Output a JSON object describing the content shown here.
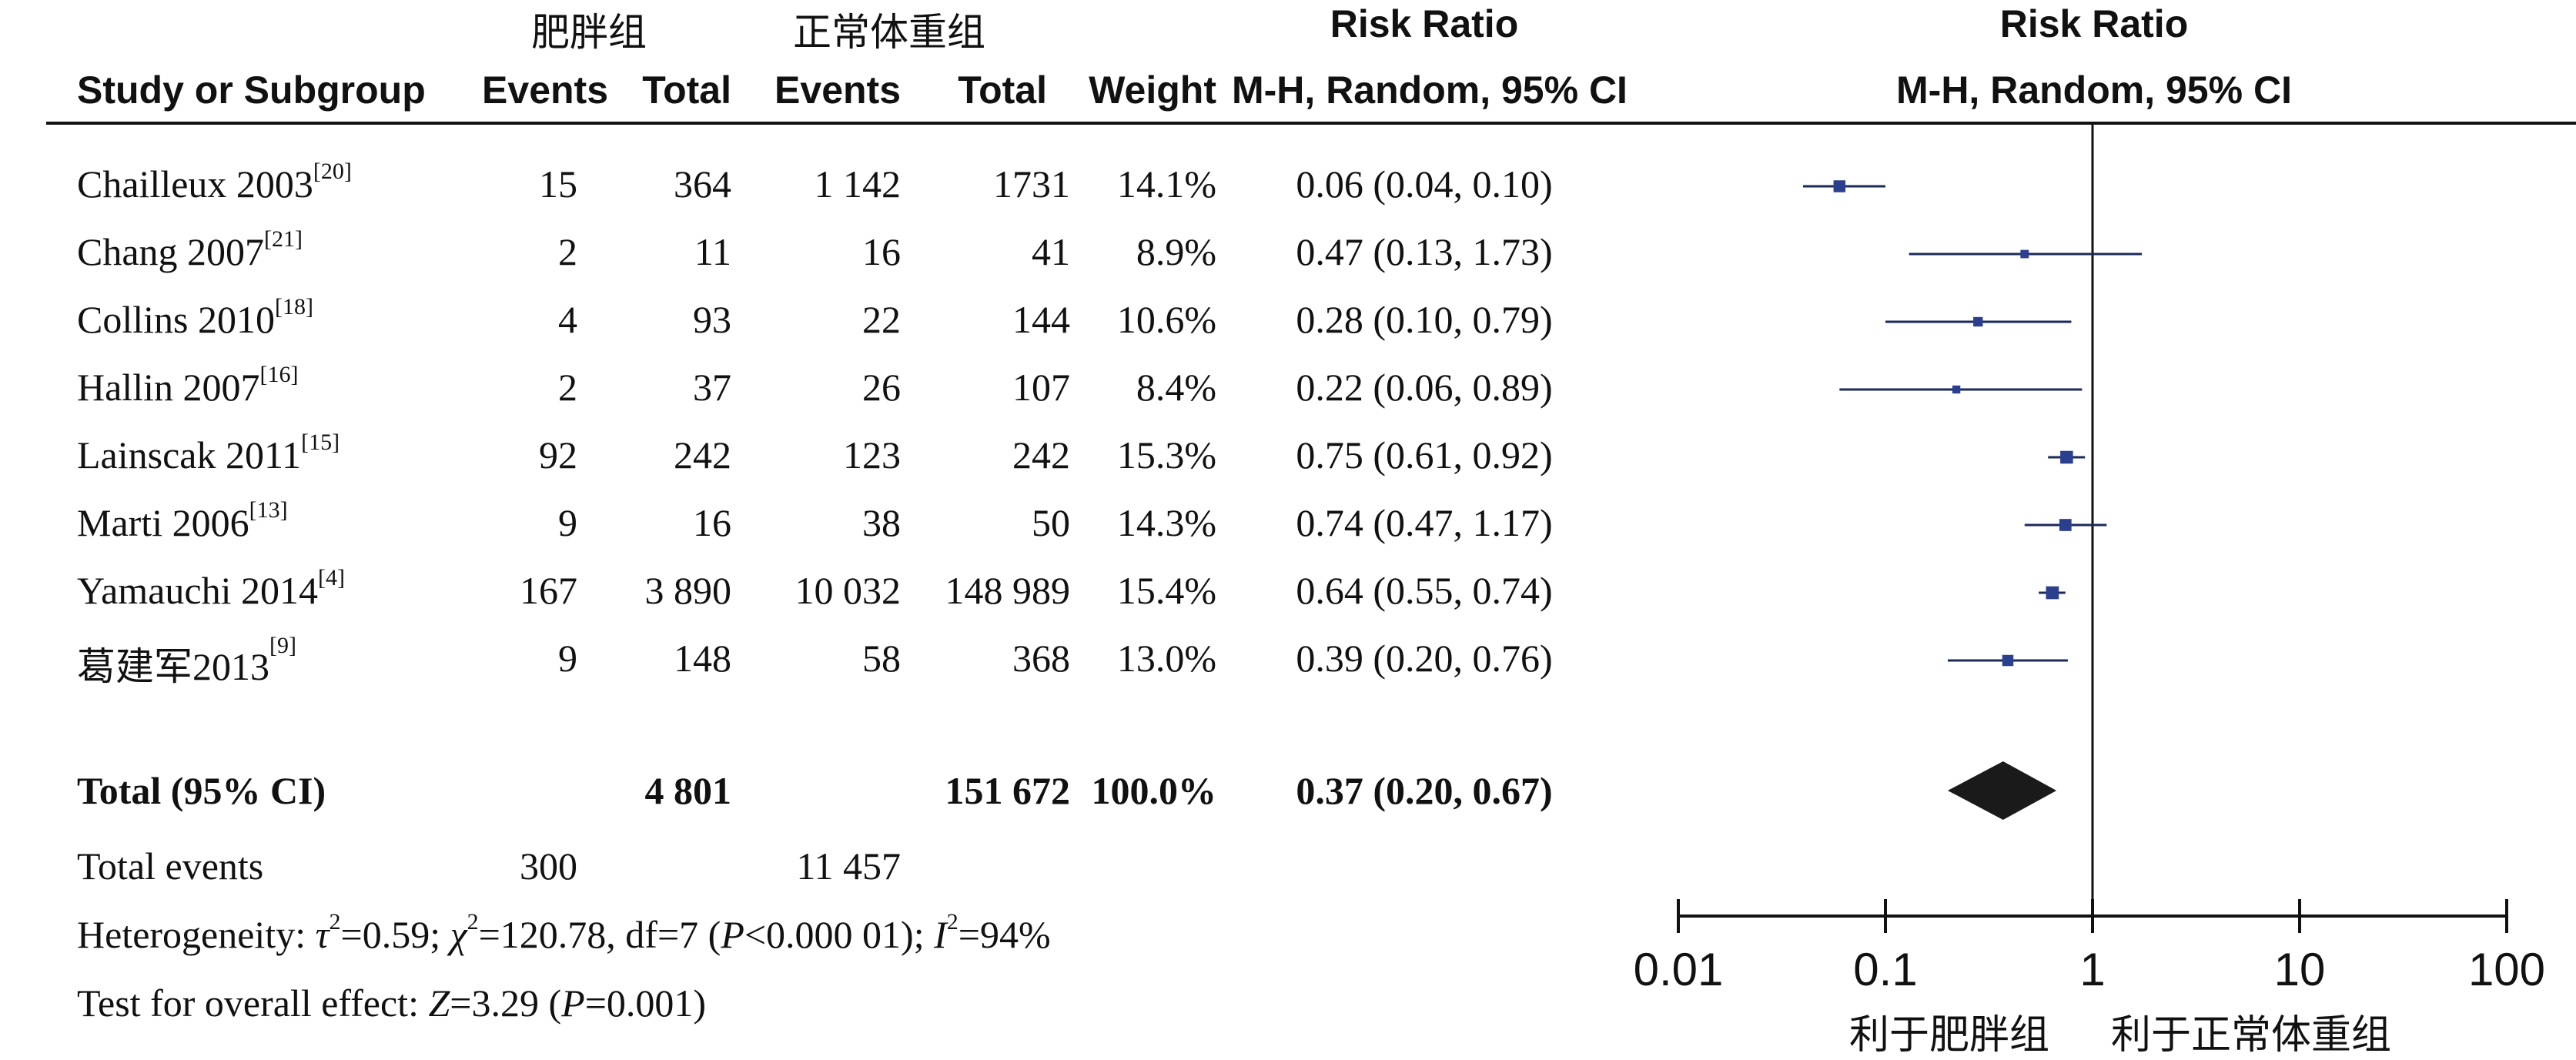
{
  "groups": {
    "obese": "肥胖组",
    "normal": "正常体重组"
  },
  "headers": {
    "study": "Study or Subgroup",
    "events1": "Events",
    "total1": "Total",
    "events2": "Events",
    "total2": "Total",
    "weight": "Weight",
    "rr_title": "Risk Ratio",
    "rr_method": "M-H, Random, 95% CI",
    "plot_title": "Risk Ratio",
    "plot_method": "M-H, Random, 95% CI"
  },
  "studies": [
    {
      "name": "Chailleux 2003",
      "ref": "[20]",
      "e1": "15",
      "t1": "364",
      "e2": "1 142",
      "t2": "1731",
      "weight": "14.1%",
      "ci": "0.06 (0.04, 0.10)"
    },
    {
      "name": "Chang 2007",
      "ref": "[21]",
      "e1": "2",
      "t1": "11",
      "e2": "16",
      "t2": "41",
      "weight": "8.9%",
      "ci": "0.47 (0.13, 1.73)"
    },
    {
      "name": "Collins 2010",
      "ref": "[18]",
      "e1": "4",
      "t1": "93",
      "e2": "22",
      "t2": "144",
      "weight": "10.6%",
      "ci": "0.28 (0.10, 0.79)"
    },
    {
      "name": "Hallin 2007",
      "ref": "[16]",
      "e1": "2",
      "t1": "37",
      "e2": "26",
      "t2": "107",
      "weight": "8.4%",
      "ci": "0.22 (0.06, 0.89)"
    },
    {
      "name": "Lainscak 2011",
      "ref": "[15]",
      "e1": "92",
      "t1": "242",
      "e2": "123",
      "t2": "242",
      "weight": "15.3%",
      "ci": "0.75 (0.61, 0.92)"
    },
    {
      "name": "Marti 2006",
      "ref": "[13]",
      "e1": "9",
      "t1": "16",
      "e2": "38",
      "t2": "50",
      "weight": "14.3%",
      "ci": "0.74 (0.47, 1.17)"
    },
    {
      "name": "Yamauchi 2014",
      "ref": "[4]",
      "e1": "167",
      "t1": "3 890",
      "e2": "10 032",
      "t2": "148 989",
      "weight": "15.4%",
      "ci": "0.64 (0.55, 0.74)"
    },
    {
      "name": "葛建军2013",
      "ref": "[9]",
      "e1": "9",
      "t1": "148",
      "e2": "58",
      "t2": "368",
      "weight": "13.0%",
      "ci": "0.39 (0.20, 0.76)"
    }
  ],
  "total": {
    "label": "Total (95% CI)",
    "t1": "4 801",
    "t2": "151 672",
    "weight": "100.0%",
    "ci": "0.37 (0.20, 0.67)"
  },
  "total_events": {
    "label": "Total events",
    "e1": "300",
    "e2": "11 457"
  },
  "heterogeneity": {
    "prefix": "Heterogeneity: ",
    "tau_sym": "τ",
    "tau_val": "=0.59; ",
    "chi_sym": "χ",
    "chi_val": "=120.78, df=7 (",
    "p_sym": "P",
    "p_val": "<0.000 01); ",
    "i_sym": "I",
    "i_val": "=94%"
  },
  "overall": {
    "prefix": "Test for overall effect: ",
    "z_sym": "Z",
    "z_val": "=3.29 (",
    "p_sym": "P",
    "p_val": "=0.001)"
  },
  "favours": {
    "left": "利于肥胖组",
    "right": "利于正常体重组"
  },
  "chart_data": {
    "type": "forest",
    "scale": "log",
    "xlim": [
      0.01,
      100
    ],
    "ticks": [
      0.01,
      0.1,
      1,
      10,
      100
    ],
    "tick_labels": [
      "0.01",
      "0.1",
      "1",
      "10",
      "100"
    ],
    "reference_line": 1,
    "marker_color": "#2b3f8f",
    "diamond_color": "#1a1a1a",
    "points": [
      {
        "study": "Chailleux 2003",
        "rr": 0.06,
        "lo": 0.04,
        "hi": 0.1,
        "weight": 14.1
      },
      {
        "study": "Chang 2007",
        "rr": 0.47,
        "lo": 0.13,
        "hi": 1.73,
        "weight": 8.9
      },
      {
        "study": "Collins 2010",
        "rr": 0.28,
        "lo": 0.1,
        "hi": 0.79,
        "weight": 10.6
      },
      {
        "study": "Hallin 2007",
        "rr": 0.22,
        "lo": 0.06,
        "hi": 0.89,
        "weight": 8.4
      },
      {
        "study": "Lainscak 2011",
        "rr": 0.75,
        "lo": 0.61,
        "hi": 0.92,
        "weight": 15.3
      },
      {
        "study": "Marti 2006",
        "rr": 0.74,
        "lo": 0.47,
        "hi": 1.17,
        "weight": 14.3
      },
      {
        "study": "Yamauchi 2014",
        "rr": 0.64,
        "lo": 0.55,
        "hi": 0.74,
        "weight": 15.4
      },
      {
        "study": "葛建军2013",
        "rr": 0.39,
        "lo": 0.2,
        "hi": 0.76,
        "weight": 13.0
      }
    ],
    "pooled": {
      "rr": 0.37,
      "lo": 0.2,
      "hi": 0.67
    }
  }
}
